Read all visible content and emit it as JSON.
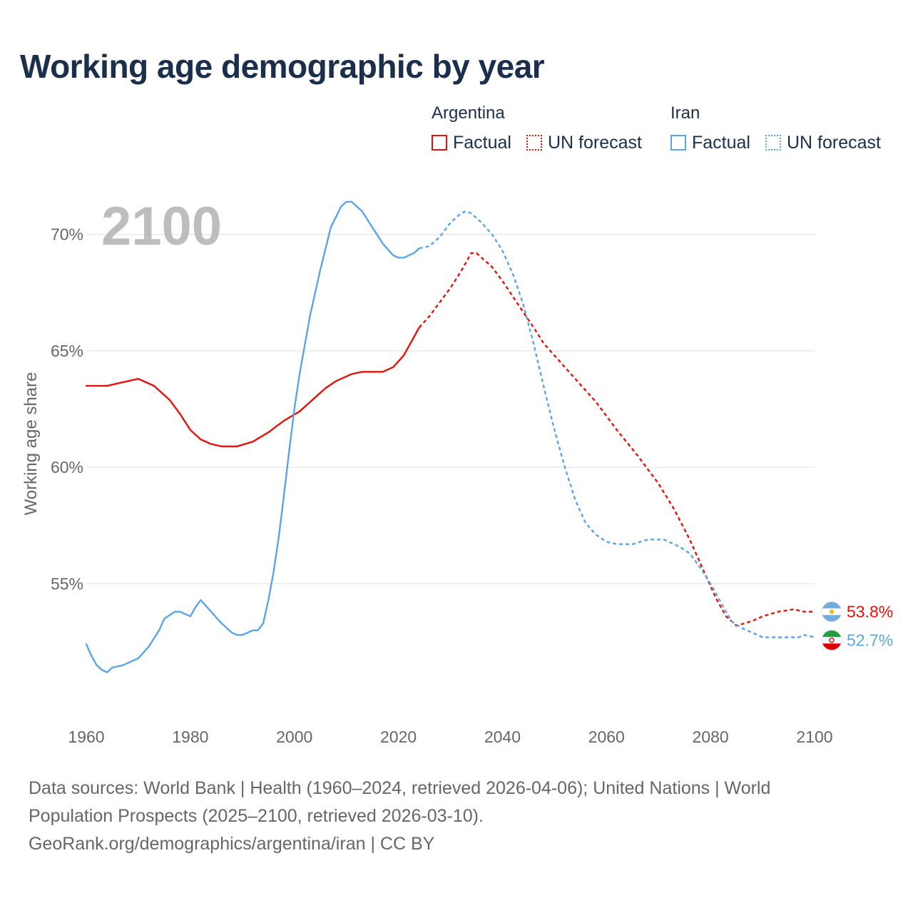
{
  "title": "Working age demographic by year",
  "legend": {
    "groups": [
      {
        "name": "Argentina",
        "factual_label": "Factual",
        "forecast_label": "UN forecast",
        "color": "#e3120b"
      },
      {
        "name": "Iran",
        "factual_label": "Factual",
        "forecast_label": "UN forecast",
        "color": "#5ba4e5"
      }
    ]
  },
  "year_display": "2100",
  "sources": {
    "line1": "Data sources: World Bank | Health (1960–2024, retrieved 2026-04-06); United Nations | World",
    "line2": "Population Prospects (2025–2100, retrieved 2026-03-10).",
    "line3": "GeoRank.org/demographics/argentina/iran | CC BY"
  },
  "chart_data": {
    "type": "line",
    "title": "Working age demographic by year",
    "xlabel": "",
    "ylabel": "Working age share",
    "xlim": [
      1960,
      2100
    ],
    "ylim": [
      49.5,
      72.5
    ],
    "x_ticks": [
      1960,
      1980,
      2000,
      2020,
      2040,
      2060,
      2080,
      2100
    ],
    "x_tick_labels": [
      "1960",
      "1980",
      "2000",
      "2020",
      "2040",
      "2060",
      "2080",
      "2100"
    ],
    "y_ticks": [
      55,
      60,
      65,
      70
    ],
    "y_tick_labels": [
      "55%",
      "60%",
      "65%",
      "70%"
    ],
    "grid": true,
    "factual_end_year": 2024,
    "series": [
      {
        "name": "Argentina",
        "color": "#e3120b",
        "end_label": "53.8%",
        "flag": "argentina-flag-icon",
        "points": [
          [
            1960,
            63.5
          ],
          [
            1964,
            63.5
          ],
          [
            1966,
            63.6
          ],
          [
            1968,
            63.7
          ],
          [
            1970,
            63.8
          ],
          [
            1973,
            63.5
          ],
          [
            1976,
            62.9
          ],
          [
            1978,
            62.3
          ],
          [
            1980,
            61.6
          ],
          [
            1982,
            61.2
          ],
          [
            1984,
            61.0
          ],
          [
            1986,
            60.9
          ],
          [
            1989,
            60.9
          ],
          [
            1992,
            61.1
          ],
          [
            1995,
            61.5
          ],
          [
            1998,
            62.0
          ],
          [
            2001,
            62.4
          ],
          [
            2004,
            63.0
          ],
          [
            2006,
            63.4
          ],
          [
            2008,
            63.7
          ],
          [
            2011,
            64.0
          ],
          [
            2013,
            64.1
          ],
          [
            2017,
            64.1
          ],
          [
            2019,
            64.3
          ],
          [
            2021,
            64.8
          ],
          [
            2023,
            65.6
          ],
          [
            2024,
            66.0
          ],
          [
            2026,
            66.5
          ],
          [
            2028,
            67.1
          ],
          [
            2030,
            67.7
          ],
          [
            2032,
            68.4
          ],
          [
            2034,
            69.2
          ],
          [
            2035,
            69.2
          ],
          [
            2038,
            68.6
          ],
          [
            2040,
            68.0
          ],
          [
            2043,
            67.0
          ],
          [
            2046,
            66.0
          ],
          [
            2048,
            65.3
          ],
          [
            2050,
            64.8
          ],
          [
            2054,
            63.8
          ],
          [
            2058,
            62.8
          ],
          [
            2062,
            61.6
          ],
          [
            2066,
            60.5
          ],
          [
            2070,
            59.3
          ],
          [
            2073,
            58.2
          ],
          [
            2076,
            56.9
          ],
          [
            2079,
            55.4
          ],
          [
            2081,
            54.4
          ],
          [
            2083,
            53.6
          ],
          [
            2085,
            53.2
          ],
          [
            2088,
            53.4
          ],
          [
            2090,
            53.6
          ],
          [
            2093,
            53.8
          ],
          [
            2096,
            53.9
          ],
          [
            2098,
            53.8
          ],
          [
            2100,
            53.8
          ]
        ]
      },
      {
        "name": "Iran",
        "color": "#5ba4e5",
        "end_label": "52.7%",
        "flag": "iran-flag-icon",
        "points": [
          [
            1960,
            52.4
          ],
          [
            1961,
            51.9
          ],
          [
            1962,
            51.5
          ],
          [
            1963,
            51.3
          ],
          [
            1964,
            51.2
          ],
          [
            1965,
            51.4
          ],
          [
            1967,
            51.5
          ],
          [
            1970,
            51.8
          ],
          [
            1972,
            52.3
          ],
          [
            1974,
            53.0
          ],
          [
            1975,
            53.5
          ],
          [
            1977,
            53.8
          ],
          [
            1978,
            53.8
          ],
          [
            1980,
            53.6
          ],
          [
            1981,
            54.0
          ],
          [
            1982,
            54.3
          ],
          [
            1984,
            53.8
          ],
          [
            1986,
            53.3
          ],
          [
            1988,
            52.9
          ],
          [
            1989,
            52.8
          ],
          [
            1990,
            52.8
          ],
          [
            1991,
            52.9
          ],
          [
            1992,
            53.0
          ],
          [
            1993,
            53.0
          ],
          [
            1994,
            53.3
          ],
          [
            1995,
            54.3
          ],
          [
            1996,
            55.5
          ],
          [
            1997,
            57.0
          ],
          [
            1998,
            58.8
          ],
          [
            1999,
            60.7
          ],
          [
            2000,
            62.5
          ],
          [
            2001,
            64.0
          ],
          [
            2003,
            66.5
          ],
          [
            2005,
            68.5
          ],
          [
            2007,
            70.3
          ],
          [
            2009,
            71.2
          ],
          [
            2010,
            71.4
          ],
          [
            2011,
            71.4
          ],
          [
            2013,
            71.0
          ],
          [
            2015,
            70.3
          ],
          [
            2017,
            69.6
          ],
          [
            2019,
            69.1
          ],
          [
            2020,
            69.0
          ],
          [
            2021,
            69.0
          ],
          [
            2023,
            69.2
          ],
          [
            2024,
            69.4
          ],
          [
            2026,
            69.5
          ],
          [
            2028,
            69.9
          ],
          [
            2030,
            70.5
          ],
          [
            2032,
            70.9
          ],
          [
            2033,
            71.0
          ],
          [
            2034,
            70.9
          ],
          [
            2036,
            70.5
          ],
          [
            2038,
            70.0
          ],
          [
            2040,
            69.3
          ],
          [
            2042,
            68.3
          ],
          [
            2044,
            67.0
          ],
          [
            2046,
            65.3
          ],
          [
            2048,
            63.4
          ],
          [
            2050,
            61.6
          ],
          [
            2052,
            60.0
          ],
          [
            2054,
            58.6
          ],
          [
            2056,
            57.6
          ],
          [
            2058,
            57.1
          ],
          [
            2060,
            56.8
          ],
          [
            2062,
            56.7
          ],
          [
            2065,
            56.7
          ],
          [
            2068,
            56.9
          ],
          [
            2071,
            56.9
          ],
          [
            2074,
            56.6
          ],
          [
            2076,
            56.3
          ],
          [
            2078,
            55.7
          ],
          [
            2080,
            55.0
          ],
          [
            2082,
            54.2
          ],
          [
            2084,
            53.4
          ],
          [
            2086,
            53.1
          ],
          [
            2088,
            52.9
          ],
          [
            2090,
            52.7
          ],
          [
            2093,
            52.7
          ],
          [
            2097,
            52.7
          ],
          [
            2098,
            52.8
          ],
          [
            2100,
            52.7
          ]
        ]
      }
    ]
  }
}
